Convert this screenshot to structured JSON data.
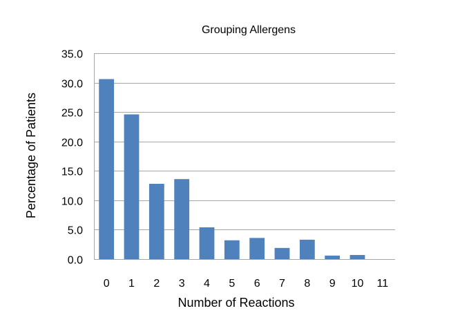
{
  "chart_data": {
    "type": "bar",
    "title": "Grouping Allergens",
    "xlabel": "Number of Reactions",
    "ylabel": "Percentage of Patients",
    "categories": [
      "0",
      "1",
      "2",
      "3",
      "4",
      "5",
      "6",
      "7",
      "8",
      "9",
      "10",
      "11"
    ],
    "values": [
      30.6,
      24.6,
      12.8,
      13.6,
      5.4,
      3.2,
      3.6,
      1.9,
      3.3,
      0.6,
      0.7,
      0.0
    ],
    "ylim": [
      0,
      35
    ],
    "yticks": [
      "0.0",
      "5.0",
      "10.0",
      "15.0",
      "20.0",
      "25.0",
      "30.0",
      "35.0"
    ],
    "grid": true,
    "legend": "none",
    "colors": {
      "bar": "#4f81bd",
      "grid": "#a6a6a6",
      "axis": "#a6a6a6"
    }
  }
}
